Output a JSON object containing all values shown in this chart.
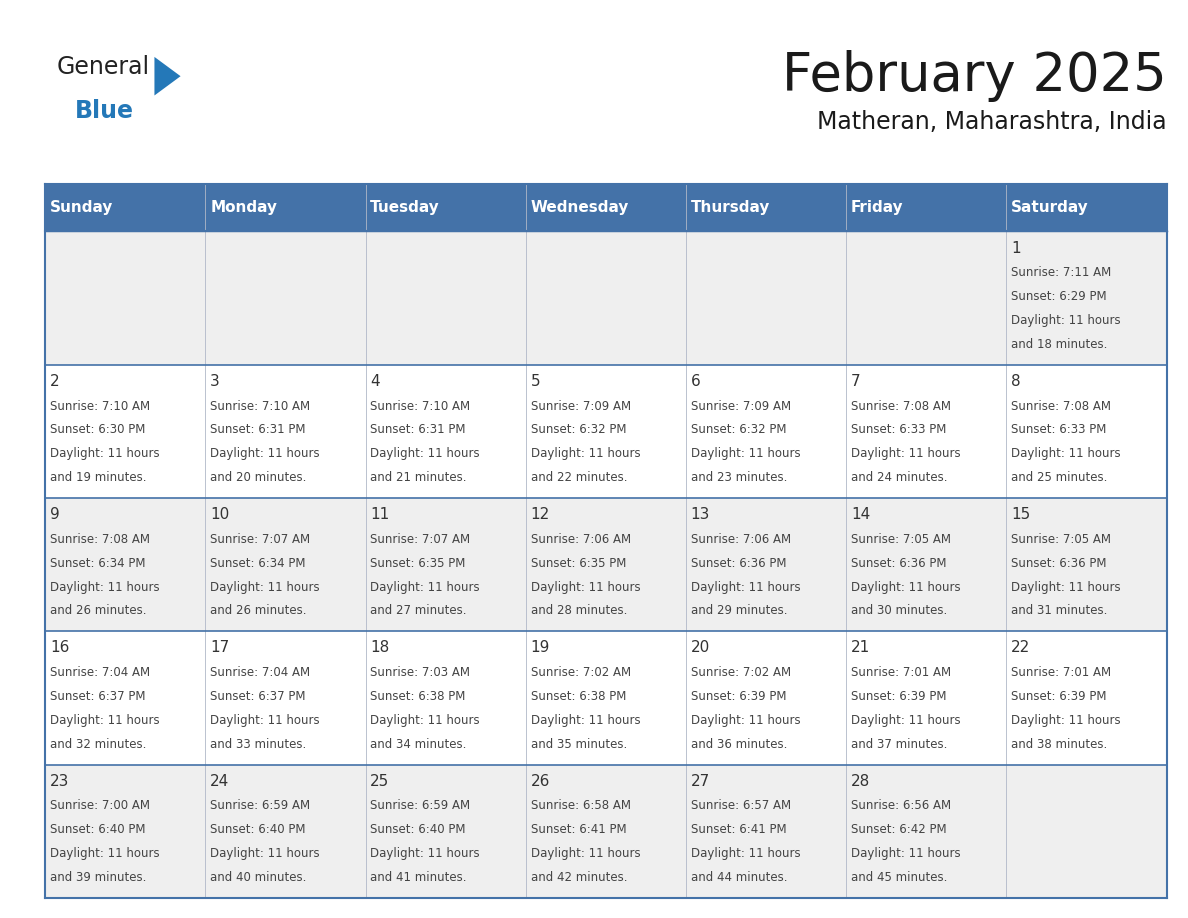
{
  "title": "February 2025",
  "subtitle": "Matheran, Maharashtra, India",
  "header_bg": "#4472a8",
  "header_text": "#ffffff",
  "days_of_week": [
    "Sunday",
    "Monday",
    "Tuesday",
    "Wednesday",
    "Thursday",
    "Friday",
    "Saturday"
  ],
  "row1_bg": "#efefef",
  "row2_bg": "#ffffff",
  "cell_border_color": "#4472a8",
  "thin_border_color": "#aaaaaa",
  "date_color": "#333333",
  "info_color": "#444444",
  "logo_general_color": "#222222",
  "logo_blue_color": "#2478b8",
  "title_fontsize": 38,
  "subtitle_fontsize": 17,
  "header_fontsize": 11,
  "day_num_fontsize": 11,
  "cell_info_fontsize": 8.5,
  "calendar_data": [
    [
      null,
      null,
      null,
      null,
      null,
      null,
      {
        "day": 1,
        "sunrise": "7:11 AM",
        "sunset": "6:29 PM",
        "daylight_h": "11 hours",
        "daylight_m": "and 18 minutes."
      }
    ],
    [
      {
        "day": 2,
        "sunrise": "7:10 AM",
        "sunset": "6:30 PM",
        "daylight_h": "11 hours",
        "daylight_m": "and 19 minutes."
      },
      {
        "day": 3,
        "sunrise": "7:10 AM",
        "sunset": "6:31 PM",
        "daylight_h": "11 hours",
        "daylight_m": "and 20 minutes."
      },
      {
        "day": 4,
        "sunrise": "7:10 AM",
        "sunset": "6:31 PM",
        "daylight_h": "11 hours",
        "daylight_m": "and 21 minutes."
      },
      {
        "day": 5,
        "sunrise": "7:09 AM",
        "sunset": "6:32 PM",
        "daylight_h": "11 hours",
        "daylight_m": "and 22 minutes."
      },
      {
        "day": 6,
        "sunrise": "7:09 AM",
        "sunset": "6:32 PM",
        "daylight_h": "11 hours",
        "daylight_m": "and 23 minutes."
      },
      {
        "day": 7,
        "sunrise": "7:08 AM",
        "sunset": "6:33 PM",
        "daylight_h": "11 hours",
        "daylight_m": "and 24 minutes."
      },
      {
        "day": 8,
        "sunrise": "7:08 AM",
        "sunset": "6:33 PM",
        "daylight_h": "11 hours",
        "daylight_m": "and 25 minutes."
      }
    ],
    [
      {
        "day": 9,
        "sunrise": "7:08 AM",
        "sunset": "6:34 PM",
        "daylight_h": "11 hours",
        "daylight_m": "and 26 minutes."
      },
      {
        "day": 10,
        "sunrise": "7:07 AM",
        "sunset": "6:34 PM",
        "daylight_h": "11 hours",
        "daylight_m": "and 26 minutes."
      },
      {
        "day": 11,
        "sunrise": "7:07 AM",
        "sunset": "6:35 PM",
        "daylight_h": "11 hours",
        "daylight_m": "and 27 minutes."
      },
      {
        "day": 12,
        "sunrise": "7:06 AM",
        "sunset": "6:35 PM",
        "daylight_h": "11 hours",
        "daylight_m": "and 28 minutes."
      },
      {
        "day": 13,
        "sunrise": "7:06 AM",
        "sunset": "6:36 PM",
        "daylight_h": "11 hours",
        "daylight_m": "and 29 minutes."
      },
      {
        "day": 14,
        "sunrise": "7:05 AM",
        "sunset": "6:36 PM",
        "daylight_h": "11 hours",
        "daylight_m": "and 30 minutes."
      },
      {
        "day": 15,
        "sunrise": "7:05 AM",
        "sunset": "6:36 PM",
        "daylight_h": "11 hours",
        "daylight_m": "and 31 minutes."
      }
    ],
    [
      {
        "day": 16,
        "sunrise": "7:04 AM",
        "sunset": "6:37 PM",
        "daylight_h": "11 hours",
        "daylight_m": "and 32 minutes."
      },
      {
        "day": 17,
        "sunrise": "7:04 AM",
        "sunset": "6:37 PM",
        "daylight_h": "11 hours",
        "daylight_m": "and 33 minutes."
      },
      {
        "day": 18,
        "sunrise": "7:03 AM",
        "sunset": "6:38 PM",
        "daylight_h": "11 hours",
        "daylight_m": "and 34 minutes."
      },
      {
        "day": 19,
        "sunrise": "7:02 AM",
        "sunset": "6:38 PM",
        "daylight_h": "11 hours",
        "daylight_m": "and 35 minutes."
      },
      {
        "day": 20,
        "sunrise": "7:02 AM",
        "sunset": "6:39 PM",
        "daylight_h": "11 hours",
        "daylight_m": "and 36 minutes."
      },
      {
        "day": 21,
        "sunrise": "7:01 AM",
        "sunset": "6:39 PM",
        "daylight_h": "11 hours",
        "daylight_m": "and 37 minutes."
      },
      {
        "day": 22,
        "sunrise": "7:01 AM",
        "sunset": "6:39 PM",
        "daylight_h": "11 hours",
        "daylight_m": "and 38 minutes."
      }
    ],
    [
      {
        "day": 23,
        "sunrise": "7:00 AM",
        "sunset": "6:40 PM",
        "daylight_h": "11 hours",
        "daylight_m": "and 39 minutes."
      },
      {
        "day": 24,
        "sunrise": "6:59 AM",
        "sunset": "6:40 PM",
        "daylight_h": "11 hours",
        "daylight_m": "and 40 minutes."
      },
      {
        "day": 25,
        "sunrise": "6:59 AM",
        "sunset": "6:40 PM",
        "daylight_h": "11 hours",
        "daylight_m": "and 41 minutes."
      },
      {
        "day": 26,
        "sunrise": "6:58 AM",
        "sunset": "6:41 PM",
        "daylight_h": "11 hours",
        "daylight_m": "and 42 minutes."
      },
      {
        "day": 27,
        "sunrise": "6:57 AM",
        "sunset": "6:41 PM",
        "daylight_h": "11 hours",
        "daylight_m": "and 44 minutes."
      },
      {
        "day": 28,
        "sunrise": "6:56 AM",
        "sunset": "6:42 PM",
        "daylight_h": "11 hours",
        "daylight_m": "and 45 minutes."
      },
      null
    ]
  ]
}
